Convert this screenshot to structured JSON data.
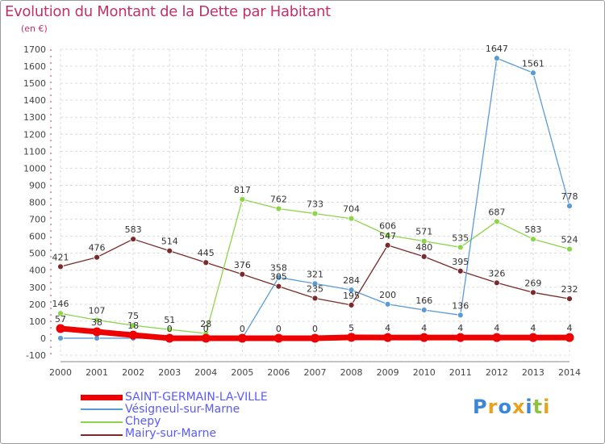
{
  "title": "Evolution du Montant de la Dette par Habitant",
  "unit": "(en €)",
  "logo": "Proxiti",
  "colors": {
    "title": "#c0316a",
    "grid": "#dcdcdc",
    "legend_text": "#5a5aff"
  },
  "chart_data": {
    "type": "line",
    "title": "Evolution du Montant de la Dette par Habitant",
    "ylabel": "(en €)",
    "xlabel": "",
    "x": [
      "2000",
      "2001",
      "2002",
      "2003",
      "2004",
      "2005",
      "2006",
      "2007",
      "2008",
      "2009",
      "2010",
      "2011",
      "2012",
      "2013",
      "2014"
    ],
    "ylim": [
      -100,
      1700
    ],
    "yticks": [
      "-100",
      "0",
      "100",
      "200",
      "300",
      "400",
      "500",
      "600",
      "700",
      "800",
      "900",
      "1000",
      "1100",
      "1200",
      "1300",
      "1400",
      "1500",
      "1600",
      "1700"
    ],
    "grid": true,
    "legend_position": "bottom-left",
    "series": [
      {
        "name": "SAINT-GERMAIN-LA-VILLE",
        "color": "#ee0000",
        "width": 7,
        "values": [
          57,
          38,
          18,
          0,
          0,
          0,
          0,
          0,
          5,
          4,
          4,
          4,
          4,
          4,
          4
        ],
        "labels": [
          "57",
          "38",
          "18",
          "0",
          "0",
          "0",
          "0",
          "0",
          "5",
          "4",
          "4",
          "4",
          "4",
          "4",
          "4"
        ]
      },
      {
        "name": "Vésigneul-sur-Marne",
        "color": "#5b9bd5",
        "width": 1.3,
        "values": [
          0,
          0,
          0,
          0,
          0,
          0,
          358,
          321,
          284,
          200,
          166,
          136,
          1647,
          1561,
          778
        ],
        "labels": [
          "",
          "",
          "",
          "",
          "",
          "",
          "358",
          "321",
          "284",
          "200",
          "166",
          "136",
          "1647",
          "1561",
          "778"
        ]
      },
      {
        "name": "Chepy",
        "color": "#8cd54a",
        "width": 1.3,
        "values": [
          146,
          107,
          75,
          51,
          28,
          817,
          762,
          733,
          704,
          606,
          571,
          535,
          687,
          583,
          524
        ],
        "labels": [
          "146",
          "107",
          "75",
          "51",
          "28",
          "817",
          "762",
          "733",
          "704",
          "606",
          "571",
          "535",
          "687",
          "583",
          "524"
        ]
      },
      {
        "name": "Mairy-sur-Marne",
        "color": "#7a2a2a",
        "width": 1.3,
        "values": [
          421,
          476,
          583,
          514,
          445,
          376,
          305,
          235,
          195,
          547,
          480,
          395,
          326,
          269,
          232
        ],
        "labels": [
          "421",
          "476",
          "583",
          "514",
          "445",
          "376",
          "305",
          "235",
          "195",
          "547",
          "480",
          "395",
          "326",
          "269",
          "232"
        ]
      }
    ]
  }
}
